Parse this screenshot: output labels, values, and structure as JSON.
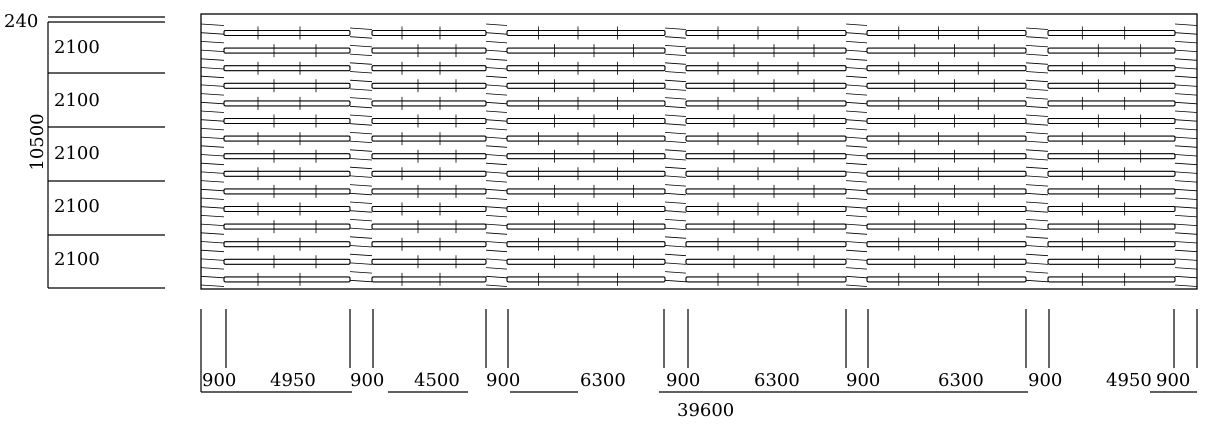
{
  "left_dims": {
    "top_label": "240",
    "total_label": "10500",
    "row_labels": [
      "2100",
      "2100",
      "2100",
      "2100",
      "2100"
    ]
  },
  "bottom_dims": {
    "segments": [
      "900",
      "4950",
      "900",
      "4500",
      "900",
      "6300",
      "900",
      "6300",
      "900",
      "6300",
      "900",
      "4950",
      "900"
    ],
    "total_label": "39600"
  }
}
